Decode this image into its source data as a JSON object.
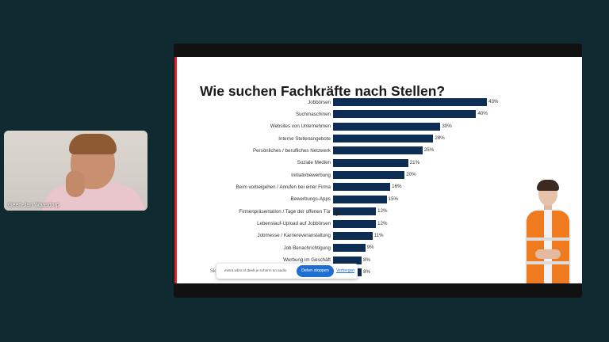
{
  "participant": {
    "name": "Geert-Jan Waasdorp"
  },
  "slide": {
    "title": "Wie suchen Fachkräfte nach Stellen?",
    "footer": "Sk"
  },
  "chart_data": {
    "type": "bar",
    "orientation": "horizontal",
    "title": "Wie suchen Fachkräfte nach Stellen?",
    "categories": [
      "Jobbörsen",
      "Suchmaschinen",
      "Websites von Unternehmen",
      "Interne Stellenangebote",
      "Persönliches / berufliches Netzwerk",
      "Soziale Medien",
      "Initiativbewerbung",
      "Beim vorbeigehen / Anrufen bei einer Firma",
      "Bewerbungs-Apps",
      "Firmenpräsentation / Tage der offenen Tür",
      "Lebenslauf-Upload auf Jobbörsen",
      "Jobmesse / Karriereveranstaltung",
      "Job Benachrichtigung",
      "Werbung im Geschäft",
      ""
    ],
    "values": [
      43,
      40,
      30,
      28,
      25,
      21,
      20,
      16,
      15,
      12,
      12,
      11,
      9,
      8,
      8
    ],
    "value_labels": [
      "43%",
      "40%",
      "30%",
      "28%",
      "25%",
      "21%",
      "20%",
      "16%",
      "15%",
      "12%",
      "12%",
      "11%",
      "9%",
      "8%",
      "8%"
    ],
    "bar_color": "#0e2d55",
    "xlim": [
      0,
      43
    ]
  },
  "share_bar": {
    "text": "event.wbnr.nl deelt je scherm en audio",
    "stop_label": "Delen stoppen",
    "hide_label": "Verbergen"
  },
  "colors": {
    "background": "#0f2a30",
    "accent": "#d9272e",
    "bar": "#0e2d55",
    "button": "#1f6fd1"
  }
}
